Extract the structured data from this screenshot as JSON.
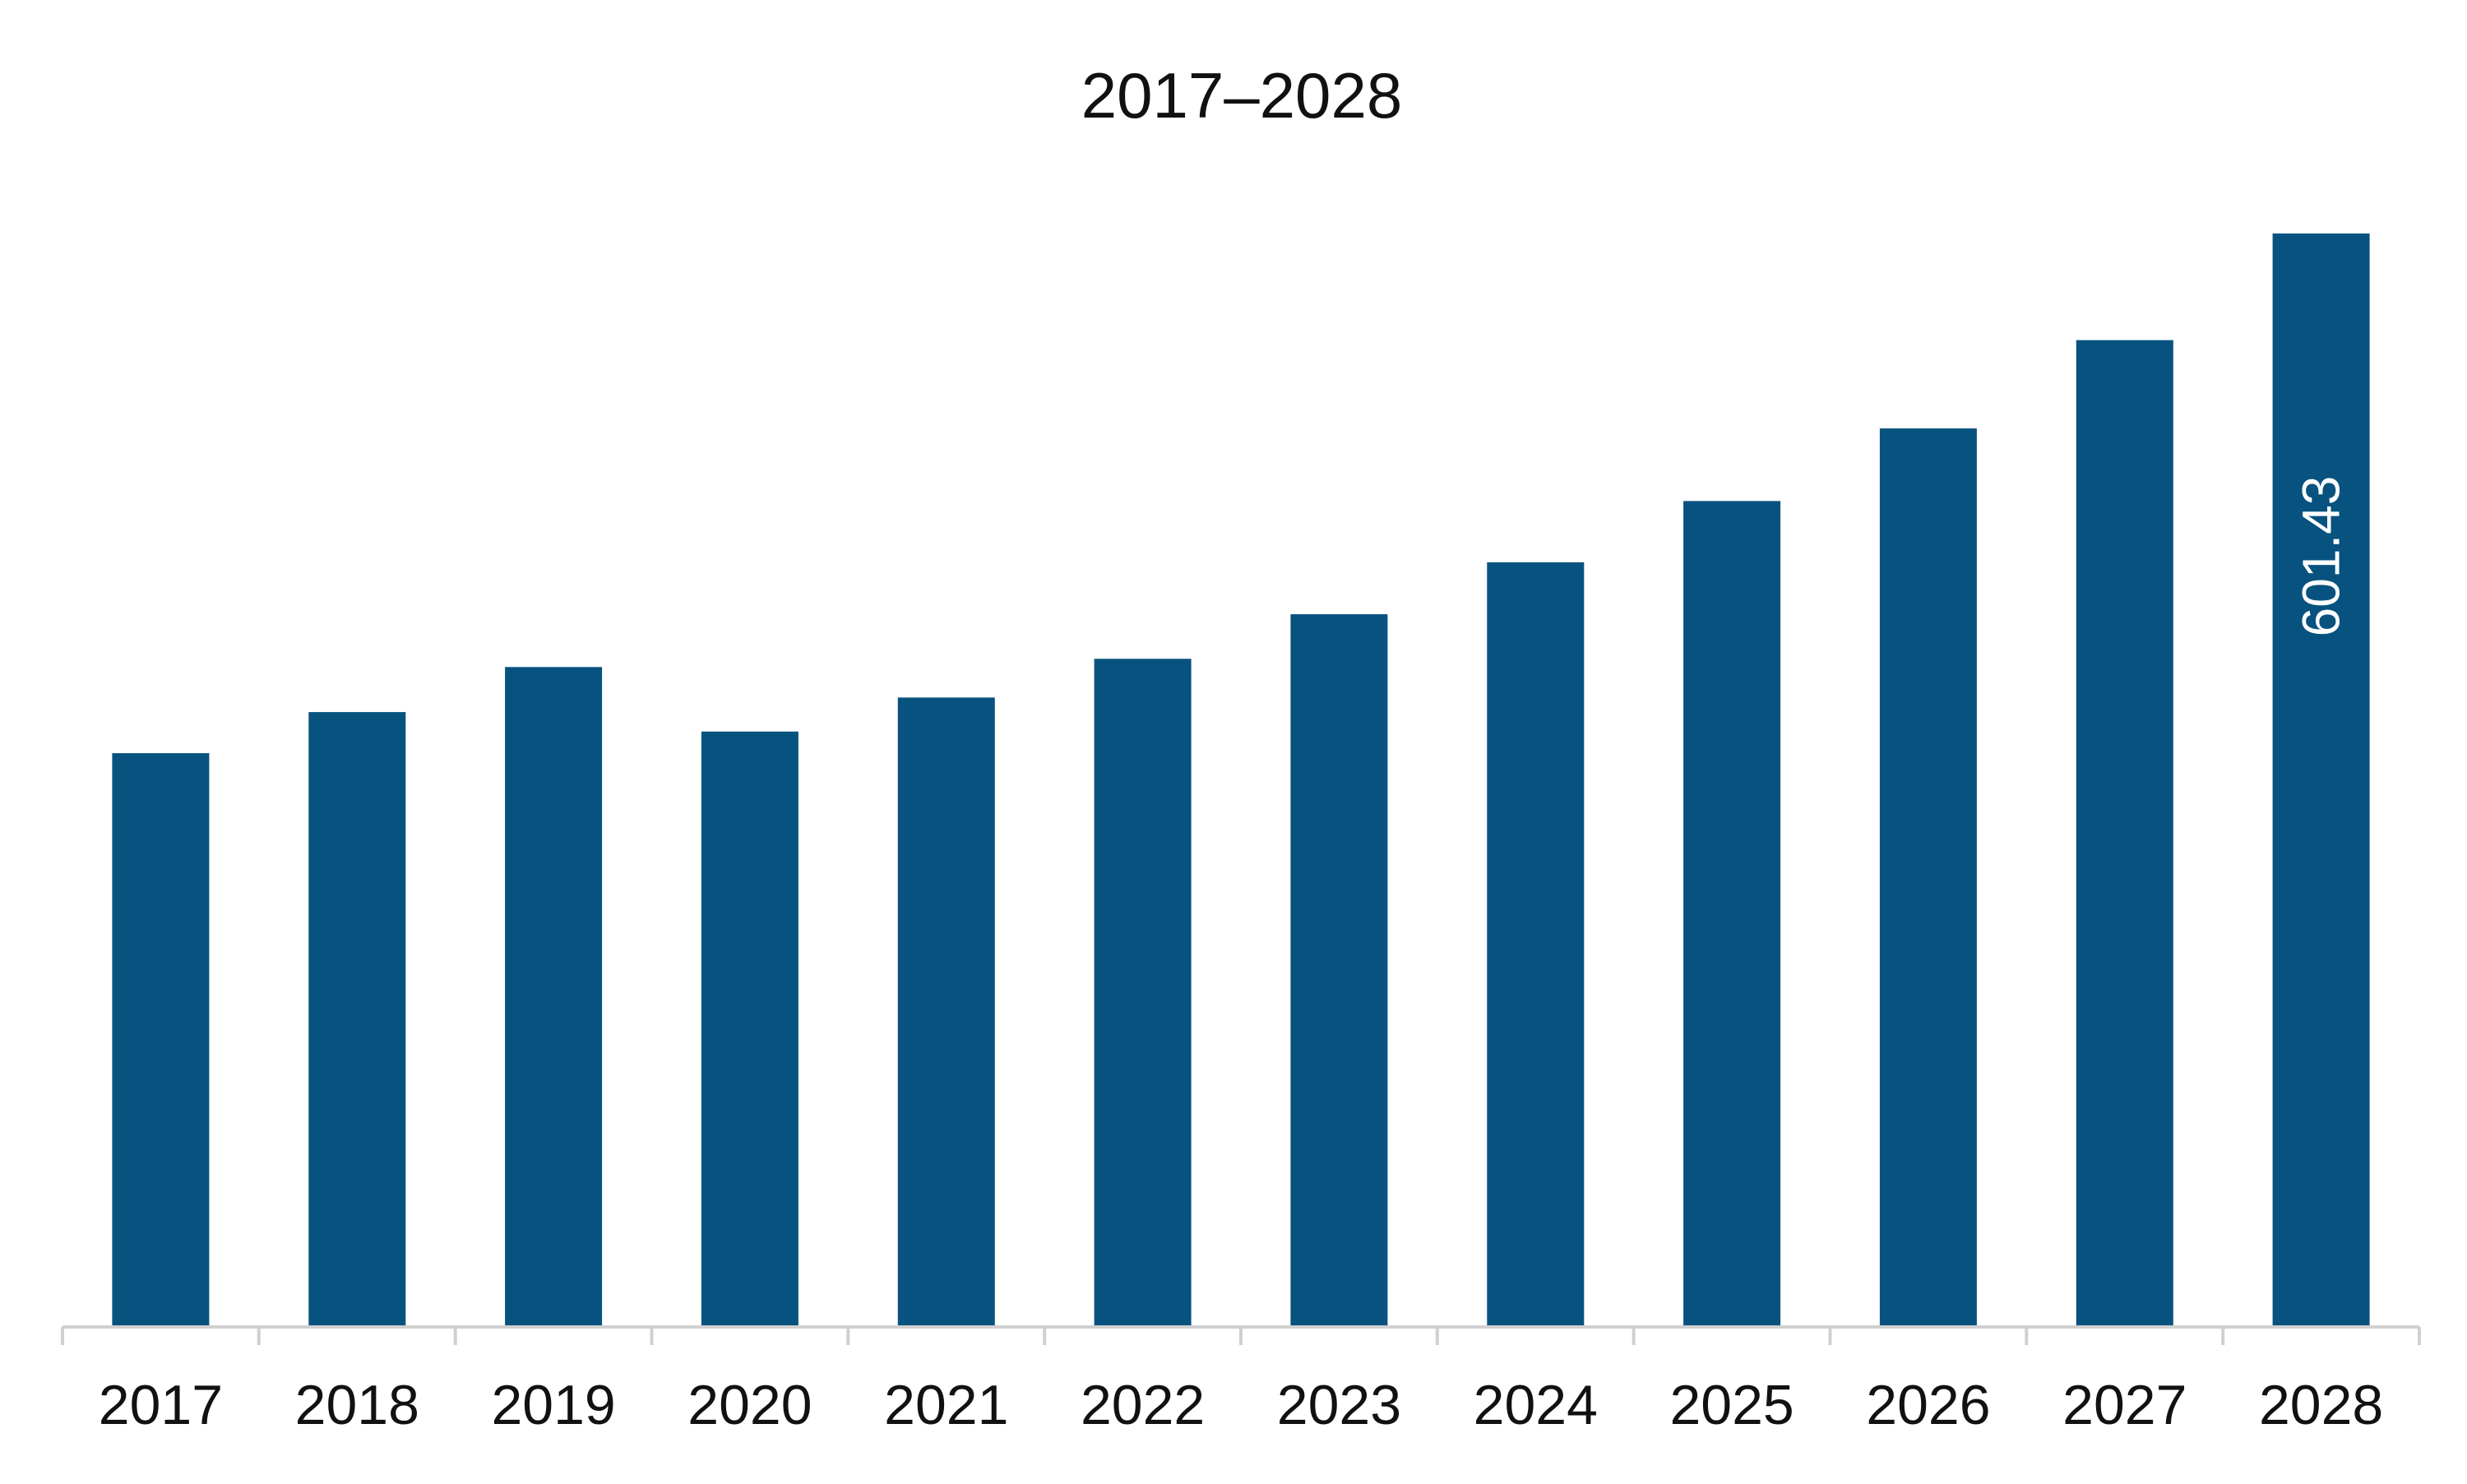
{
  "chart_data": {
    "type": "bar",
    "title": "2017–2028",
    "xlabel": "",
    "ylabel": "",
    "categories": [
      "2017",
      "2018",
      "2019",
      "2020",
      "2021",
      "2022",
      "2023",
      "2024",
      "2025",
      "2026",
      "2027",
      "2028"
    ],
    "values": [
      315.6,
      338.2,
      363.0,
      327.5,
      346.2,
      367.5,
      392.0,
      420.6,
      454.3,
      494.2,
      542.8,
      601.43
    ],
    "ylim": [
      0,
      601.43
    ],
    "grid": false,
    "legend": "none",
    "data_labels": [
      {
        "category": "2028",
        "text": "601.43"
      }
    ]
  },
  "colors": {
    "bar": "#08527f",
    "axis": "#d0d0d0",
    "text": "#111111",
    "data_label": "#ffffff"
  }
}
